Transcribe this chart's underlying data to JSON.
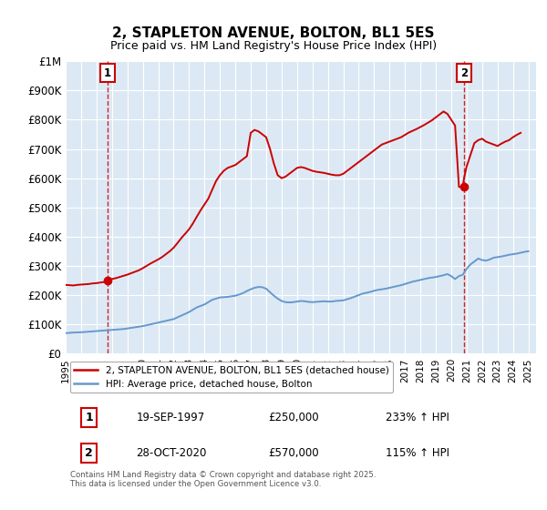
{
  "title": "2, STAPLETON AVENUE, BOLTON, BL1 5ES",
  "subtitle": "Price paid vs. HM Land Registry's House Price Index (HPI)",
  "bg_color": "#dce9f5",
  "fig_bg_color": "#ffffff",
  "red_line_color": "#cc0000",
  "blue_line_color": "#6699cc",
  "marker_color": "#cc0000",
  "ylim": [
    0,
    1000000
  ],
  "yticks": [
    0,
    100000,
    200000,
    300000,
    400000,
    500000,
    600000,
    700000,
    800000,
    900000,
    1000000
  ],
  "ytick_labels": [
    "£0",
    "£100K",
    "£200K",
    "£300K",
    "£400K",
    "£500K",
    "£600K",
    "£700K",
    "£800K",
    "£900K",
    "£1M"
  ],
  "xlim_start": 1995.0,
  "xlim_end": 2025.5,
  "xticks": [
    1995,
    1996,
    1997,
    1998,
    1999,
    2000,
    2001,
    2002,
    2003,
    2004,
    2005,
    2006,
    2007,
    2008,
    2009,
    2010,
    2011,
    2012,
    2013,
    2014,
    2015,
    2016,
    2017,
    2018,
    2019,
    2020,
    2021,
    2022,
    2023,
    2024,
    2025
  ],
  "marker1_x": 1997.72,
  "marker1_y": 250000,
  "marker2_x": 2020.83,
  "marker2_y": 570000,
  "sale1_label": "1",
  "sale2_label": "2",
  "sale1_date": "19-SEP-1997",
  "sale1_price": "£250,000",
  "sale1_hpi": "233% ↑ HPI",
  "sale2_date": "28-OCT-2020",
  "sale2_price": "£570,000",
  "sale2_hpi": "115% ↑ HPI",
  "legend_red": "2, STAPLETON AVENUE, BOLTON, BL1 5ES (detached house)",
  "legend_blue": "HPI: Average price, detached house, Bolton",
  "footer": "Contains HM Land Registry data © Crown copyright and database right 2025.\nThis data is licensed under the Open Government Licence v3.0.",
  "hpi_x": [
    1995.0,
    1995.25,
    1995.5,
    1995.75,
    1996.0,
    1996.25,
    1996.5,
    1996.75,
    1997.0,
    1997.25,
    1997.5,
    1997.75,
    1998.0,
    1998.25,
    1998.5,
    1998.75,
    1999.0,
    1999.25,
    1999.5,
    1999.75,
    2000.0,
    2000.25,
    2000.5,
    2000.75,
    2001.0,
    2001.25,
    2001.5,
    2001.75,
    2002.0,
    2002.25,
    2002.5,
    2002.75,
    2003.0,
    2003.25,
    2003.5,
    2003.75,
    2004.0,
    2004.25,
    2004.5,
    2004.75,
    2005.0,
    2005.25,
    2005.5,
    2005.75,
    2006.0,
    2006.25,
    2006.5,
    2006.75,
    2007.0,
    2007.25,
    2007.5,
    2007.75,
    2008.0,
    2008.25,
    2008.5,
    2008.75,
    2009.0,
    2009.25,
    2009.5,
    2009.75,
    2010.0,
    2010.25,
    2010.5,
    2010.75,
    2011.0,
    2011.25,
    2011.5,
    2011.75,
    2012.0,
    2012.25,
    2012.5,
    2012.75,
    2013.0,
    2013.25,
    2013.5,
    2013.75,
    2014.0,
    2014.25,
    2014.5,
    2014.75,
    2015.0,
    2015.25,
    2015.5,
    2015.75,
    2016.0,
    2016.25,
    2016.5,
    2016.75,
    2017.0,
    2017.25,
    2017.5,
    2017.75,
    2018.0,
    2018.25,
    2018.5,
    2018.75,
    2019.0,
    2019.25,
    2019.5,
    2019.75,
    2020.0,
    2020.25,
    2020.5,
    2020.75,
    2021.0,
    2021.25,
    2021.5,
    2021.75,
    2022.0,
    2022.25,
    2022.5,
    2022.75,
    2023.0,
    2023.25,
    2023.5,
    2023.75,
    2024.0,
    2024.25,
    2024.5,
    2024.75,
    2025.0
  ],
  "hpi_y": [
    70000,
    71000,
    72000,
    72500,
    73000,
    74000,
    75000,
    76000,
    77000,
    78000,
    79000,
    80000,
    81000,
    82000,
    83000,
    84000,
    86000,
    88000,
    90000,
    92000,
    94000,
    97000,
    100000,
    103000,
    106000,
    109000,
    112000,
    115000,
    118000,
    124000,
    130000,
    136000,
    142000,
    150000,
    158000,
    163000,
    168000,
    176000,
    184000,
    188000,
    192000,
    193000,
    194000,
    196000,
    198000,
    202000,
    207000,
    214000,
    220000,
    225000,
    228000,
    227000,
    222000,
    210000,
    198000,
    188000,
    180000,
    176000,
    175000,
    176000,
    178000,
    180000,
    179000,
    177000,
    176000,
    177000,
    178000,
    179000,
    178000,
    178000,
    180000,
    181000,
    182000,
    186000,
    190000,
    195000,
    200000,
    205000,
    208000,
    211000,
    215000,
    218000,
    220000,
    222000,
    225000,
    228000,
    231000,
    234000,
    238000,
    242000,
    246000,
    249000,
    252000,
    255000,
    258000,
    260000,
    262000,
    265000,
    268000,
    272000,
    265000,
    255000,
    265000,
    270000,
    290000,
    305000,
    315000,
    325000,
    320000,
    318000,
    322000,
    328000,
    330000,
    332000,
    335000,
    338000,
    340000,
    342000,
    345000,
    348000,
    350000
  ],
  "red_x": [
    1995.0,
    1995.25,
    1995.5,
    1995.75,
    1996.0,
    1996.25,
    1996.5,
    1996.75,
    1997.0,
    1997.25,
    1997.5,
    1997.72,
    1997.75,
    1998.0,
    1998.25,
    1998.5,
    1998.75,
    1999.0,
    1999.25,
    1999.5,
    1999.75,
    2000.0,
    2000.25,
    2000.5,
    2000.75,
    2001.0,
    2001.25,
    2001.5,
    2001.75,
    2002.0,
    2002.25,
    2002.5,
    2002.75,
    2003.0,
    2003.25,
    2003.5,
    2003.75,
    2004.0,
    2004.25,
    2004.5,
    2004.75,
    2005.0,
    2005.25,
    2005.5,
    2005.75,
    2006.0,
    2006.25,
    2006.5,
    2006.75,
    2007.0,
    2007.25,
    2007.5,
    2007.75,
    2008.0,
    2008.25,
    2008.5,
    2008.75,
    2009.0,
    2009.25,
    2009.5,
    2009.75,
    2010.0,
    2010.25,
    2010.5,
    2010.75,
    2011.0,
    2011.25,
    2011.5,
    2011.75,
    2012.0,
    2012.25,
    2012.5,
    2012.75,
    2013.0,
    2013.25,
    2013.5,
    2013.75,
    2014.0,
    2014.25,
    2014.5,
    2014.75,
    2015.0,
    2015.25,
    2015.5,
    2015.75,
    2016.0,
    2016.25,
    2016.5,
    2016.75,
    2017.0,
    2017.25,
    2017.5,
    2017.75,
    2018.0,
    2018.25,
    2018.5,
    2018.75,
    2019.0,
    2019.25,
    2019.5,
    2019.75,
    2020.0,
    2020.25,
    2020.5,
    2020.75,
    2020.83,
    2021.0,
    2021.25,
    2021.5,
    2021.75,
    2022.0,
    2022.25,
    2022.5,
    2022.75,
    2023.0,
    2023.25,
    2023.5,
    2023.75,
    2024.0,
    2024.25,
    2024.5,
    2024.75,
    2025.0
  ],
  "red_y": [
    235000,
    234000,
    233000,
    235000,
    236000,
    237000,
    238000,
    240000,
    241000,
    243000,
    245000,
    250000,
    252000,
    255000,
    258000,
    262000,
    266000,
    270000,
    275000,
    280000,
    285000,
    292000,
    300000,
    308000,
    315000,
    322000,
    330000,
    340000,
    350000,
    362000,
    378000,
    395000,
    410000,
    425000,
    445000,
    468000,
    490000,
    510000,
    530000,
    560000,
    590000,
    610000,
    625000,
    635000,
    640000,
    645000,
    655000,
    665000,
    675000,
    755000,
    765000,
    760000,
    750000,
    740000,
    700000,
    650000,
    610000,
    600000,
    605000,
    615000,
    625000,
    635000,
    638000,
    635000,
    630000,
    625000,
    622000,
    620000,
    618000,
    615000,
    612000,
    610000,
    610000,
    615000,
    625000,
    635000,
    645000,
    655000,
    665000,
    675000,
    685000,
    695000,
    705000,
    715000,
    720000,
    725000,
    730000,
    735000,
    740000,
    748000,
    756000,
    762000,
    768000,
    775000,
    782000,
    790000,
    798000,
    808000,
    818000,
    828000,
    820000,
    800000,
    780000,
    570000,
    570000,
    600000,
    640000,
    680000,
    720000,
    730000,
    735000,
    725000,
    720000,
    715000,
    710000,
    718000,
    725000,
    730000,
    740000,
    748000,
    755000
  ]
}
